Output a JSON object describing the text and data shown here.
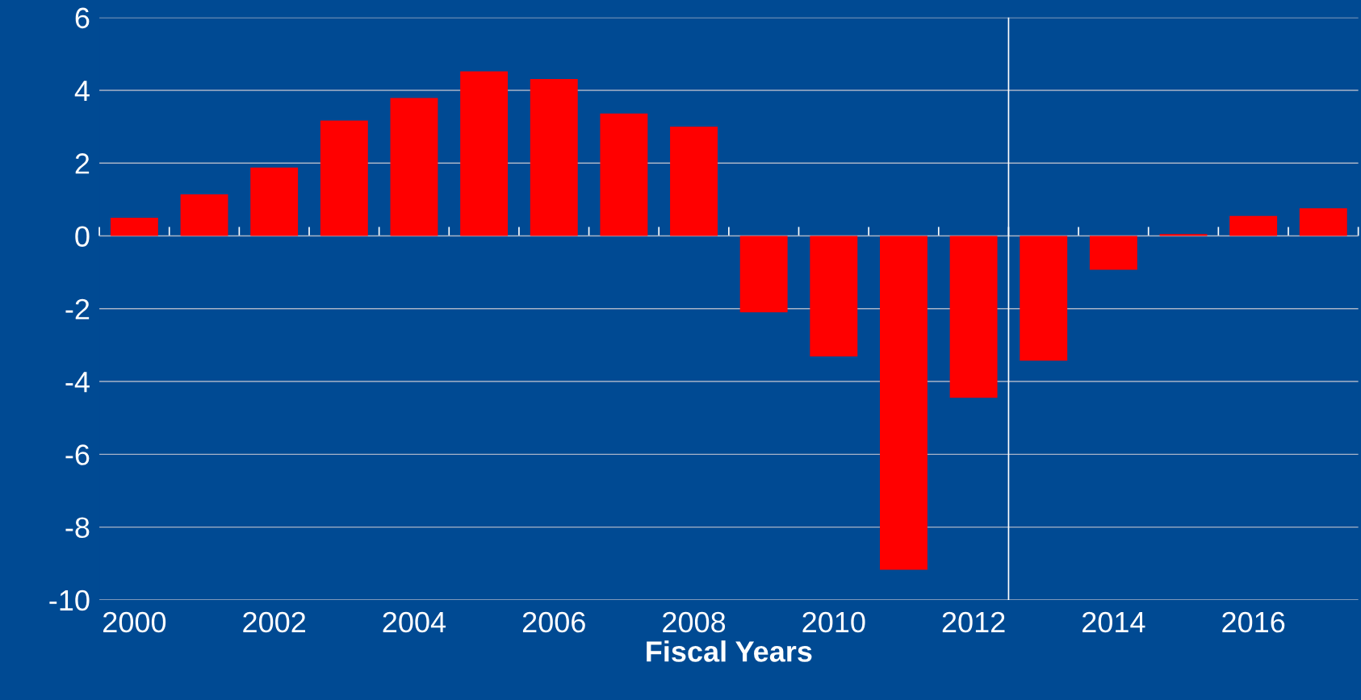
{
  "chart_data": {
    "type": "bar",
    "xlabel": "Fiscal Years",
    "x": [
      2000,
      2001,
      2002,
      2003,
      2004,
      2005,
      2006,
      2007,
      2008,
      2009,
      2010,
      2011,
      2012,
      2013,
      2014,
      2015,
      2016,
      2017
    ],
    "series": [
      {
        "color": "#ff0000",
        "values": [
          0.5,
          1.14,
          1.88,
          3.17,
          3.79,
          4.52,
          4.31,
          3.36,
          3.0,
          -2.1,
          -3.31,
          -9.17,
          -4.45,
          -3.43,
          -0.93,
          0.05,
          0.55,
          0.76
        ]
      }
    ],
    "xlim": [
      1999.5,
      2017.5
    ],
    "xticks": [
      {
        "value": 1999.5,
        "label": null
      },
      {
        "value": 2000,
        "label": "2000"
      },
      {
        "value": 2000.5,
        "label": null
      },
      {
        "value": 2001.5,
        "label": null
      },
      {
        "value": 2002,
        "label": "2002"
      },
      {
        "value": 2002.5,
        "label": null
      },
      {
        "value": 2003.5,
        "label": null
      },
      {
        "value": 2004,
        "label": "2004"
      },
      {
        "value": 2004.5,
        "label": null
      },
      {
        "value": 2005.5,
        "label": null
      },
      {
        "value": 2006,
        "label": "2006"
      },
      {
        "value": 2006.5,
        "label": null
      },
      {
        "value": 2007.5,
        "label": null
      },
      {
        "value": 2008,
        "label": "2008"
      },
      {
        "value": 2008.5,
        "label": null
      },
      {
        "value": 2009.5,
        "label": null
      },
      {
        "value": 2010,
        "label": "2010"
      },
      {
        "value": 2010.5,
        "label": null
      },
      {
        "value": 2011.5,
        "label": null
      },
      {
        "value": 2012,
        "label": "2012"
      },
      {
        "value": 2012.5,
        "label": null
      },
      {
        "value": 2013.5,
        "label": null
      },
      {
        "value": 2014,
        "label": "2014"
      },
      {
        "value": 2014.5,
        "label": null
      },
      {
        "value": 2015.5,
        "label": null
      },
      {
        "value": 2016,
        "label": "2016"
      },
      {
        "value": 2016.5,
        "label": null
      },
      {
        "value": 2017.5,
        "label": null
      }
    ],
    "ylim": [
      -10,
      6
    ],
    "yticks": [
      -10,
      -8,
      -6,
      -4,
      -2,
      0,
      2,
      4,
      6
    ],
    "grid": "y",
    "ref_lines": [
      {
        "axis": "x",
        "value": 2012.5,
        "color": "#ffffff",
        "line_style": "solid"
      }
    ],
    "legend": false
  }
}
